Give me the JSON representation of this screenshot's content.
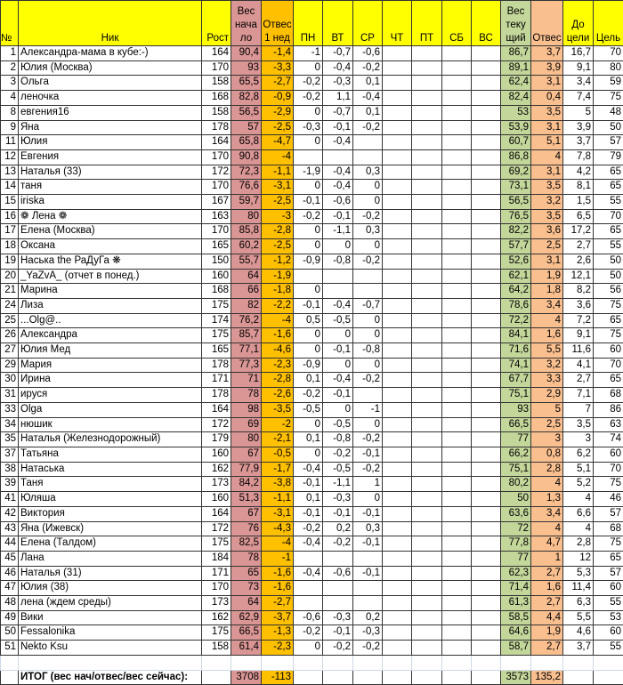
{
  "colors": {
    "header": "#ffff00",
    "start_weight": "#da9694",
    "week1_loss": "#ffc000",
    "current_weight": "#c4d79b",
    "total_loss": "#fabf8f"
  },
  "headers": [
    "№",
    "Ник",
    "Рост",
    "Вес нача ло",
    "Отвес 1 нед",
    "ПН",
    "ВТ",
    "СР",
    "ЧТ",
    "ПТ",
    "СБ",
    "ВС",
    "Вес теку щий",
    "Отвес",
    "До цели",
    "Цель"
  ],
  "rows": [
    [
      "1",
      "Александра-мама в кубе:-)",
      "164",
      "90,4",
      "-1,4",
      "-1",
      "-0,7",
      "-0,6",
      "",
      "",
      "",
      "",
      "86,7",
      "3,7",
      "16,7",
      "70"
    ],
    [
      "2",
      "Юлия (Москва)",
      "170",
      "93",
      "-3,3",
      "0",
      "-0,4",
      "-0,2",
      "",
      "",
      "",
      "",
      "89,1",
      "3,9",
      "9,1",
      "80"
    ],
    [
      "3",
      "Ольга",
      "158",
      "65,5",
      "-2,7",
      "-0,2",
      "-0,3",
      "0,1",
      "",
      "",
      "",
      "",
      "62,4",
      "3,1",
      "3,4",
      "59"
    ],
    [
      "4",
      "леночка",
      "168",
      "82,8",
      "-0,9",
      "-0,2",
      "1,1",
      "-0,4",
      "",
      "",
      "",
      "",
      "82,4",
      "0,4",
      "7,4",
      "75"
    ],
    [
      "8",
      "евгения16",
      "158",
      "56,5",
      "-2,9",
      "0",
      "-0,7",
      "0,1",
      "",
      "",
      "",
      "",
      "53",
      "3,5",
      "5",
      "48"
    ],
    [
      "9",
      "Яна",
      "178",
      "57",
      "-2,5",
      "-0,3",
      "-0,1",
      "-0,2",
      "",
      "",
      "",
      "",
      "53,9",
      "3,1",
      "3,9",
      "50"
    ],
    [
      "11",
      "Юлия",
      "164",
      "65,8",
      "-4,7",
      "0",
      "-0,4",
      "",
      "",
      "",
      "",
      "",
      "60,7",
      "5,1",
      "3,7",
      "57"
    ],
    [
      "12",
      "Евгения",
      "170",
      "90,8",
      "-4",
      "",
      "",
      "",
      "",
      "",
      "",
      "",
      "86,8",
      "4",
      "7,8",
      "79"
    ],
    [
      "13",
      "Наталья (33)",
      "172",
      "72,3",
      "-1,1",
      "-1,9",
      "-0,4",
      "0,3",
      "",
      "",
      "",
      "",
      "69,2",
      "3,1",
      "4,2",
      "65"
    ],
    [
      "14",
      "таня",
      "170",
      "76,6",
      "-3,1",
      "0",
      "-0,4",
      "0",
      "",
      "",
      "",
      "",
      "73,1",
      "3,5",
      "8,1",
      "65"
    ],
    [
      "15",
      "iriska",
      "167",
      "59,7",
      "-2,5",
      "-0,1",
      "-0,6",
      "0",
      "",
      "",
      "",
      "",
      "56,5",
      "3,2",
      "1,5",
      "55"
    ],
    [
      "16",
      "❁ Лена ❁",
      "163",
      "80",
      "-3",
      "-0,2",
      "-0,1",
      "-0,2",
      "",
      "",
      "",
      "",
      "76,5",
      "3,5",
      "6,5",
      "70"
    ],
    [
      "17",
      "Елена (Москва)",
      "170",
      "85,8",
      "-2,8",
      "0",
      "-1,1",
      "0,3",
      "",
      "",
      "",
      "",
      "82,2",
      "3,6",
      "17,2",
      "65"
    ],
    [
      "18",
      "Оксана",
      "165",
      "60,2",
      "-2,5",
      "0",
      "0",
      "0",
      "",
      "",
      "",
      "",
      "57,7",
      "2,5",
      "2,7",
      "55"
    ],
    [
      "19",
      "Наська the РаДуГа ❋",
      "150",
      "55,7",
      "-1,2",
      "-0,9",
      "-0,8",
      "-0,2",
      "",
      "",
      "",
      "",
      "52,6",
      "3,1",
      "2,6",
      "50"
    ],
    [
      "20",
      "_YaZvA_ (отчет в понед.)",
      "160",
      "64",
      "-1,9",
      "",
      "",
      "",
      "",
      "",
      "",
      "",
      "62,1",
      "1,9",
      "12,1",
      "50"
    ],
    [
      "21",
      "Марина",
      "168",
      "66",
      "-1,8",
      "0",
      "",
      "",
      "",
      "",
      "",
      "",
      "64,2",
      "1,8",
      "8,2",
      "56"
    ],
    [
      "24",
      "Лиза",
      "175",
      "82",
      "-2,2",
      "-0,1",
      "-0,4",
      "-0,7",
      "",
      "",
      "",
      "",
      "78,6",
      "3,4",
      "3,6",
      "75"
    ],
    [
      "25",
      "...Olg@..",
      "174",
      "76,2",
      "-4",
      "0,5",
      "-0,5",
      "0",
      "",
      "",
      "",
      "",
      "72,2",
      "4",
      "7,2",
      "65"
    ],
    [
      "26",
      "Александра",
      "175",
      "85,7",
      "-1,6",
      "0",
      "0",
      "0",
      "",
      "",
      "",
      "",
      "84,1",
      "1,6",
      "9,1",
      "75"
    ],
    [
      "27",
      "Юлия Мед",
      "165",
      "77,1",
      "-4,6",
      "0",
      "-0,1",
      "-0,8",
      "",
      "",
      "",
      "",
      "71,6",
      "5,5",
      "11,6",
      "60"
    ],
    [
      "29",
      "Мария",
      "178",
      "77,3",
      "-2,3",
      "-0,9",
      "0",
      "0",
      "",
      "",
      "",
      "",
      "74,1",
      "3,2",
      "4,1",
      "70"
    ],
    [
      "30",
      "Ирина",
      "171",
      "71",
      "-2,8",
      "0,1",
      "-0,4",
      "-0,2",
      "",
      "",
      "",
      "",
      "67,7",
      "3,3",
      "2,7",
      "65"
    ],
    [
      "31",
      "ируся",
      "178",
      "78",
      "-2,6",
      "-0,2",
      "-0,1",
      "",
      "",
      "",
      "",
      "",
      "75,1",
      "2,9",
      "7,1",
      "68"
    ],
    [
      "33",
      "Olga",
      "164",
      "98",
      "-3,5",
      "-0,5",
      "0",
      "-1",
      "",
      "",
      "",
      "",
      "93",
      "5",
      "7",
      "86"
    ],
    [
      "34",
      "нюшик",
      "172",
      "69",
      "-2",
      "0",
      "-0,5",
      "0",
      "",
      "",
      "",
      "",
      "66,5",
      "2,5",
      "3,5",
      "63"
    ],
    [
      "35",
      "Наталья (Железнодорожный)",
      "179",
      "80",
      "-2,1",
      "0,1",
      "-0,8",
      "-0,2",
      "",
      "",
      "",
      "",
      "77",
      "3",
      "3",
      "74"
    ],
    [
      "37",
      "Татьяна",
      "160",
      "67",
      "-0,5",
      "0",
      "-0,2",
      "-0,1",
      "",
      "",
      "",
      "",
      "66,2",
      "0,8",
      "6,2",
      "60"
    ],
    [
      "38",
      "Натаська",
      "162",
      "77,9",
      "-1,7",
      "-0,4",
      "-0,5",
      "-0,2",
      "",
      "",
      "",
      "",
      "75,1",
      "2,8",
      "5,1",
      "70"
    ],
    [
      "39",
      "Таня",
      "173",
      "84,2",
      "-3,8",
      "-0,1",
      "-1,1",
      "1",
      "",
      "",
      "",
      "",
      "80,2",
      "4",
      "5,2",
      "75"
    ],
    [
      "41",
      "Юляша",
      "160",
      "51,3",
      "-1,1",
      "0,1",
      "-0,3",
      "0",
      "",
      "",
      "",
      "",
      "50",
      "1,3",
      "4",
      "46"
    ],
    [
      "42",
      "Виктория",
      "164",
      "67",
      "-3,1",
      "-0,1",
      "-0,1",
      "-0,1",
      "",
      "",
      "",
      "",
      "63,6",
      "3,4",
      "6,6",
      "57"
    ],
    [
      "43",
      "Яна (Ижевск)",
      "172",
      "76",
      "-4,3",
      "-0,2",
      "0,2",
      "0,3",
      "",
      "",
      "",
      "",
      "72",
      "4",
      "4",
      "68"
    ],
    [
      "44",
      "Елена (Талдом)",
      "175",
      "82,5",
      "-4",
      "-0,4",
      "-0,2",
      "-0,1",
      "",
      "",
      "",
      "",
      "77,8",
      "4,7",
      "2,8",
      "75"
    ],
    [
      "45",
      "Лана",
      "184",
      "78",
      "-1",
      "",
      "",
      "",
      "",
      "",
      "",
      "",
      "77",
      "1",
      "12",
      "65"
    ],
    [
      "46",
      "Наталья (31)",
      "171",
      "65",
      "-1,6",
      "-0,4",
      "-0,6",
      "-0,1",
      "",
      "",
      "",
      "",
      "62,3",
      "2,7",
      "5,3",
      "57"
    ],
    [
      "47",
      "Юлия (38)",
      "170",
      "73",
      "-1,6",
      "",
      "",
      "",
      "",
      "",
      "",
      "",
      "71,4",
      "1,6",
      "11,4",
      "60"
    ],
    [
      "48",
      "лена (ждем среды)",
      "173",
      "64",
      "-2,7",
      "",
      "",
      "",
      "",
      "",
      "",
      "",
      "61,3",
      "2,7",
      "6,3",
      "55"
    ],
    [
      "49",
      "Вики",
      "162",
      "62,9",
      "-3,7",
      "-0,6",
      "-0,3",
      "0,2",
      "",
      "",
      "",
      "",
      "58,5",
      "4,4",
      "5,5",
      "53"
    ],
    [
      "50",
      "Fessalonika",
      "175",
      "66,5",
      "-1,3",
      "-0,2",
      "-0,1",
      "-0,3",
      "",
      "",
      "",
      "",
      "64,6",
      "1,9",
      "4,6",
      "60"
    ],
    [
      "51",
      "Nekto Ksu",
      "158",
      "61,4",
      "-2,3",
      "0",
      "-0,2",
      "-0,2",
      "",
      "",
      "",
      "",
      "58,7",
      "2,7",
      "3,7",
      "55"
    ]
  ],
  "total": {
    "label": "ИТОГ (вес нач/отвес/вес сейчас):",
    "start_weight": "3708",
    "week1_loss": "-113",
    "current_weight": "3573",
    "total_loss": "135,2"
  }
}
